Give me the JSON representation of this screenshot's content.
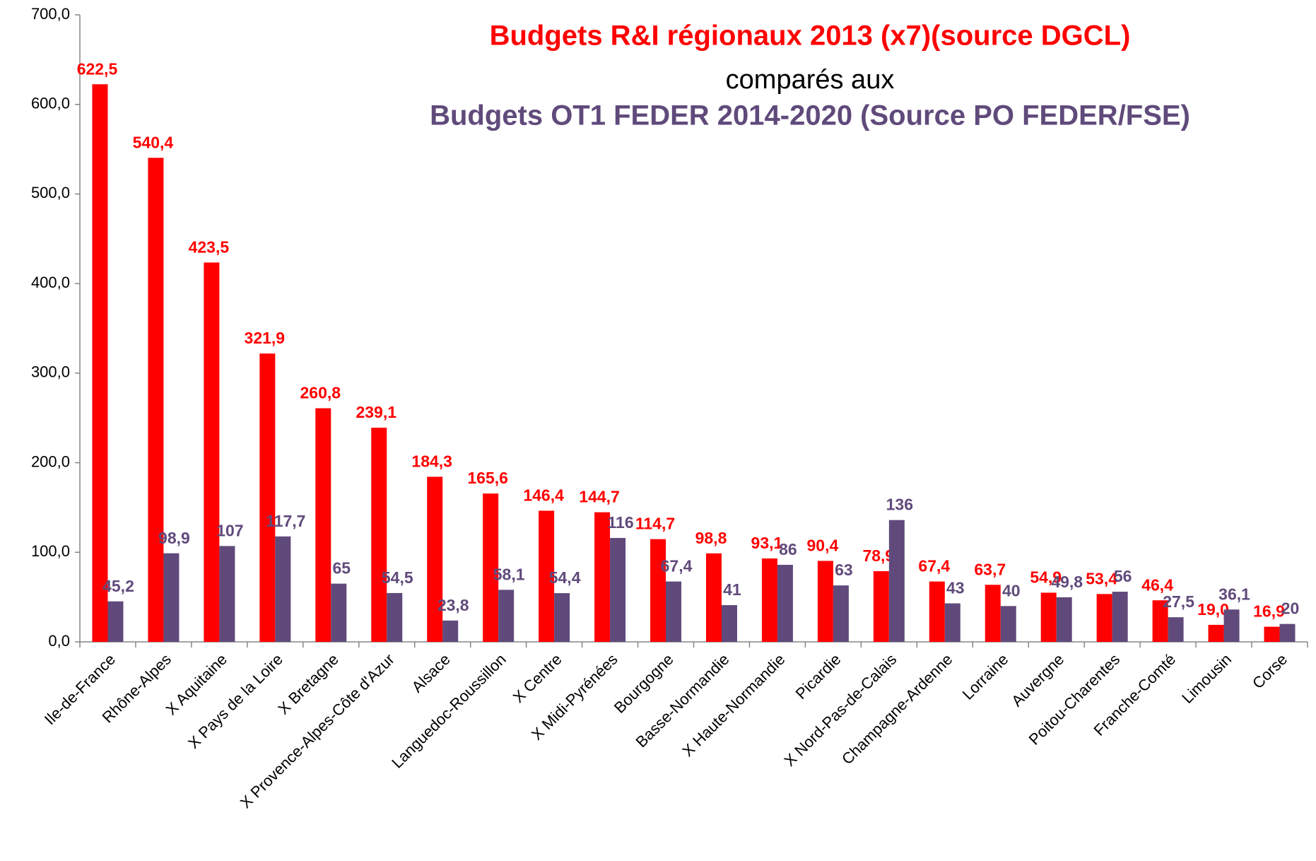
{
  "chart_data": {
    "type": "bar",
    "title": "Budgets R&I régionaux 2013 (x7)(source DGCL)",
    "subtitle": "comparés aux",
    "title_2": "Budgets OT1 FEDER 2014-2020 (Source PO FEDER/FSE)",
    "categories": [
      "Ile-de-France",
      "Rhône-Alpes",
      "X Aquitaine",
      "X Pays de la Loire",
      "X Bretagne",
      "X Provence-Alpes-Côte d'Azur",
      "Alsace",
      "Languedoc-Roussillon",
      "X Centre",
      "X Midi-Pyrénées",
      "Bourgogne",
      "Basse-Normandie",
      "X Haute-Normandie",
      "Picardie",
      "X Nord-Pas-de-Calais",
      "Champagne-Ardenne",
      "Lorraine",
      "Auvergne",
      "Poitou-Charentes",
      "Franche-Comté",
      "Limousin",
      "Corse"
    ],
    "series": [
      {
        "color": "#ff0000",
        "values": [
          622.5,
          540.4,
          423.5,
          321.9,
          260.8,
          239.1,
          184.3,
          165.6,
          146.4,
          144.7,
          114.7,
          98.8,
          93.1,
          90.4,
          78.9,
          67.4,
          63.7,
          54.9,
          53.4,
          46.4,
          19.0,
          16.9
        ],
        "value_labels": [
          "622,5",
          "540,4",
          "423,5",
          "321,9",
          "260,8",
          "239,1",
          "184,3",
          "165,6",
          "146,4",
          "144,7",
          "114,7",
          "98,8",
          "93,1",
          "90,4",
          "78,9",
          "67,4",
          "63,7",
          "54,9",
          "53,4",
          "46,4",
          "19,0",
          "16,9"
        ]
      },
      {
        "color": "#604a7b",
        "values": [
          45.2,
          98.9,
          107,
          117.7,
          65,
          54.5,
          23.8,
          58.1,
          54.4,
          116,
          67.4,
          41,
          86,
          63,
          136,
          43,
          40,
          49.8,
          56,
          27.5,
          36.1,
          20
        ],
        "value_labels": [
          "45,2",
          "98,9",
          "107",
          "117,7",
          "65",
          "54,5",
          "23,8",
          "58,1",
          "54,4",
          "116",
          "67,4",
          "41",
          "86",
          "63",
          "136",
          "43",
          "40",
          "49,8",
          "56",
          "27,5",
          "36,1",
          "20"
        ]
      }
    ],
    "ylim": [
      0,
      700
    ],
    "yticks": [
      {
        "value": 0,
        "label": "0,0"
      },
      {
        "value": 100,
        "label": "100,0"
      },
      {
        "value": 200,
        "label": "200,0"
      },
      {
        "value": 300,
        "label": "300,0"
      },
      {
        "value": 400,
        "label": "400,0"
      },
      {
        "value": 500,
        "label": "500,0"
      },
      {
        "value": 600,
        "label": "600,0"
      },
      {
        "value": 700,
        "label": "700,0"
      }
    ],
    "grid": false
  }
}
